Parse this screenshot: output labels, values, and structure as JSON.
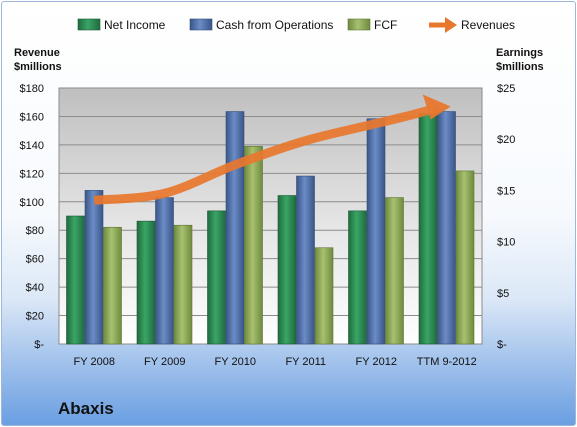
{
  "company": "Abaxis",
  "left_axis_label": [
    "Revenue",
    "$millions"
  ],
  "right_axis_label": [
    "Earnings",
    "$millions"
  ],
  "legend": [
    {
      "name": "Net Income",
      "color": "#2e8b57",
      "kind": "bar"
    },
    {
      "name": "Cash from Operations",
      "color": "#4f6fa8",
      "kind": "bar"
    },
    {
      "name": "FCF",
      "color": "#8faa5a",
      "kind": "bar"
    },
    {
      "name": "Revenues",
      "color": "#e8772e",
      "kind": "arrow"
    }
  ],
  "chart_data": {
    "type": "bar",
    "categories": [
      "FY 2008",
      "FY 2009",
      "FY 2010",
      "FY 2011",
      "FY 2012",
      "TTM 9-2012"
    ],
    "series": [
      {
        "name": "Net Income",
        "axis": "right",
        "values": [
          12.5,
          12.0,
          13.0,
          14.5,
          13.0,
          22.5
        ]
      },
      {
        "name": "Cash from Operations",
        "axis": "right",
        "values": [
          15.0,
          14.3,
          22.7,
          16.4,
          22.0,
          22.7
        ]
      },
      {
        "name": "FCF",
        "axis": "right",
        "values": [
          11.4,
          11.6,
          19.3,
          9.4,
          14.3,
          16.9
        ]
      },
      {
        "name": "Revenues",
        "axis": "left",
        "kind": "line",
        "values": [
          101,
          106,
          126,
          143,
          155,
          167
        ]
      }
    ],
    "left_axis": {
      "min": 0,
      "max": 180,
      "step": 20,
      "ticks": [
        "$-",
        "$20",
        "$40",
        "$60",
        "$80",
        "$100",
        "$120",
        "$140",
        "$160",
        "$180"
      ]
    },
    "right_axis": {
      "min": 0,
      "max": 25,
      "step": 5,
      "ticks": [
        "$-",
        "$5",
        "$10",
        "$15",
        "$20",
        "$25"
      ]
    },
    "grid": true,
    "legend_position": "top"
  }
}
